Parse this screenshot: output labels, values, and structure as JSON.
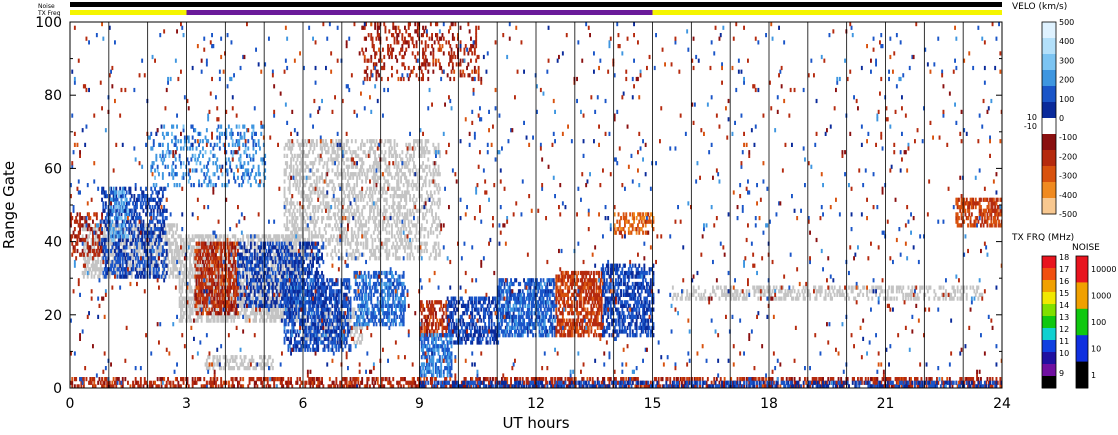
{
  "chart_data": {
    "type": "heatmap",
    "xlabel": "UT hours",
    "ylabel": "Range Gate",
    "xlim": [
      0,
      24
    ],
    "ylim": [
      0,
      100
    ],
    "x_ticks": [
      "0",
      "3",
      "6",
      "9",
      "12",
      "15",
      "18",
      "21",
      "24"
    ],
    "y_ticks": [
      "0",
      "20",
      "40",
      "60",
      "80",
      "100"
    ],
    "vertical_lines_every_hours": 1,
    "top_bars": {
      "noise_label": "Noise",
      "txfreq_label": "TX Freq",
      "txfreq_segments": [
        {
          "from": 0,
          "to": 3,
          "color": "#f5f500"
        },
        {
          "from": 3,
          "to": 15,
          "color": "#6a1b9a"
        },
        {
          "from": 15,
          "to": 24,
          "color": "#f5f500"
        }
      ]
    },
    "velocity_colorbar": {
      "label": "VELO (km/s)",
      "ticks": [
        "500",
        "400",
        "300",
        "200",
        "100",
        "0",
        "-100",
        "-200",
        "-300",
        "-400",
        "-500"
      ],
      "center_labels": [
        "10",
        "-10"
      ],
      "colors_top_to_bottom": [
        "#dff2ff",
        "#b3e0fa",
        "#7cc4f2",
        "#3e96e0",
        "#1a55c8",
        "#0a2a9a",
        "#ffffff",
        "#8a1010",
        "#b52a0e",
        "#d8520e",
        "#f08a20",
        "#f8c890"
      ]
    },
    "txfreq_colorbar": {
      "label": "TX FRQ (MHz)",
      "ticks": [
        "18",
        "17",
        "16",
        "15",
        "14",
        "13",
        "12",
        "11",
        "10",
        "9"
      ],
      "colors_top_to_bottom": [
        "#e8141e",
        "#f05010",
        "#f0a000",
        "#f0e800",
        "#80e000",
        "#10c810",
        "#10d0d0",
        "#1040e0",
        "#2010a0",
        "#7010a0",
        "#000000"
      ]
    },
    "noise_colorbar": {
      "label": "NOISE",
      "ticks": [
        "10000",
        "1000",
        "100",
        "10",
        "1"
      ],
      "colors_top_to_bottom": [
        "#e8141e",
        "#f0a000",
        "#10c810",
        "#1030e0",
        "#000000"
      ]
    },
    "ground_scatter_color": "#c4c4c4",
    "scatter_regions": [
      {
        "kind": "gs",
        "t": [
          0.3,
          2.8
        ],
        "g": [
          30,
          45
        ],
        "d": 0.55
      },
      {
        "kind": "gs",
        "t": [
          2.8,
          6.0
        ],
        "g": [
          18,
          42
        ],
        "d": 0.6
      },
      {
        "kind": "gs",
        "t": [
          3.4,
          5.2
        ],
        "g": [
          5,
          9
        ],
        "d": 0.5
      },
      {
        "kind": "gs",
        "t": [
          5.5,
          9.5
        ],
        "g": [
          35,
          68
        ],
        "d": 0.35
      },
      {
        "kind": "gs",
        "t": [
          6.0,
          7.5
        ],
        "g": [
          12,
          22
        ],
        "d": 0.45
      },
      {
        "kind": "gs",
        "t": [
          15.5,
          23.5
        ],
        "g": [
          24,
          28
        ],
        "d": 0.35
      },
      {
        "kind": "vel",
        "v": -130,
        "t": [
          0.0,
          0.8
        ],
        "g": [
          36,
          48
        ],
        "d": 0.35
      },
      {
        "kind": "vel",
        "v": 110,
        "t": [
          0.8,
          2.5
        ],
        "g": [
          30,
          55
        ],
        "d": 0.4
      },
      {
        "kind": "vel",
        "v": 300,
        "t": [
          1.0,
          1.5
        ],
        "g": [
          40,
          55
        ],
        "d": 0.3
      },
      {
        "kind": "vel",
        "v": -150,
        "t": [
          3.2,
          4.3
        ],
        "g": [
          20,
          40
        ],
        "d": 0.6
      },
      {
        "kind": "vel",
        "v": 90,
        "t": [
          4.3,
          6.5
        ],
        "g": [
          22,
          40
        ],
        "d": 0.45
      },
      {
        "kind": "vel",
        "v": 240,
        "t": [
          2.0,
          5.0
        ],
        "g": [
          55,
          72
        ],
        "d": 0.2
      },
      {
        "kind": "vel",
        "v": 130,
        "t": [
          5.5,
          7.2
        ],
        "g": [
          10,
          30
        ],
        "d": 0.55
      },
      {
        "kind": "vel",
        "v": 180,
        "t": [
          7.3,
          8.6
        ],
        "g": [
          17,
          32
        ],
        "d": 0.55
      },
      {
        "kind": "vel",
        "v": -150,
        "t": [
          9.0,
          9.7
        ],
        "g": [
          14,
          24
        ],
        "d": 0.5
      },
      {
        "kind": "vel",
        "v": 100,
        "t": [
          9.7,
          11.0
        ],
        "g": [
          12,
          25
        ],
        "d": 0.55
      },
      {
        "kind": "vel",
        "v": 200,
        "t": [
          9.0,
          9.8
        ],
        "g": [
          3,
          15
        ],
        "d": 0.55
      },
      {
        "kind": "vel",
        "v": 160,
        "t": [
          11.0,
          12.5
        ],
        "g": [
          14,
          30
        ],
        "d": 0.6
      },
      {
        "kind": "vel",
        "v": -180,
        "t": [
          12.5,
          13.7
        ],
        "g": [
          14,
          32
        ],
        "d": 0.6
      },
      {
        "kind": "vel",
        "v": 110,
        "t": [
          13.7,
          15.0
        ],
        "g": [
          14,
          34
        ],
        "d": 0.55
      },
      {
        "kind": "vel",
        "v": -300,
        "t": [
          14.0,
          15.0
        ],
        "g": [
          42,
          48
        ],
        "d": 0.4
      },
      {
        "kind": "vel",
        "v": -200,
        "t": [
          22.8,
          24.0
        ],
        "g": [
          44,
          52
        ],
        "d": 0.6
      },
      {
        "kind": "vel",
        "v": -140,
        "t": [
          0.0,
          24.0
        ],
        "g": [
          0,
          3
        ],
        "d": 0.45
      },
      {
        "kind": "vel",
        "v": 100,
        "t": [
          9.0,
          24.0
        ],
        "g": [
          0,
          2
        ],
        "d": 0.5
      },
      {
        "kind": "vel",
        "v": -130,
        "t": [
          7.5,
          10.5
        ],
        "g": [
          84,
          100
        ],
        "d": 0.2
      },
      {
        "kind": "vel",
        "v": 150,
        "t": [
          0.0,
          24.0
        ],
        "g": [
          0,
          100
        ],
        "d": 0.012
      },
      {
        "kind": "vel",
        "v": -150,
        "t": [
          0.0,
          24.0
        ],
        "g": [
          0,
          100
        ],
        "d": 0.012
      }
    ]
  }
}
